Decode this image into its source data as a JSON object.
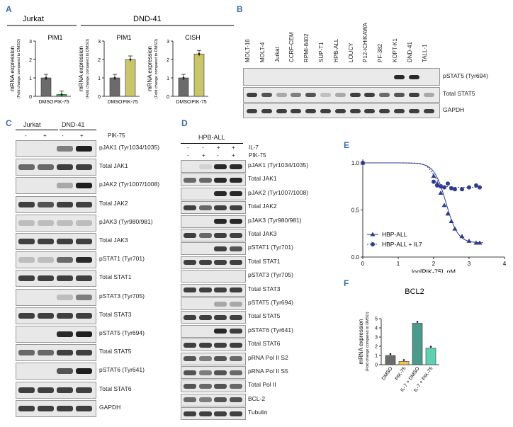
{
  "panels": {
    "A": "A",
    "B": "B",
    "C": "C",
    "D": "D",
    "E": "E",
    "F": "F"
  },
  "panel_a": {
    "group_left": "Jurkat",
    "group_right": "DND-41",
    "ylabel": "mRNA expression",
    "ylabel_sub": "(Fold change compared to DMSO)",
    "conditions": [
      "DMSO",
      "PIK-75"
    ],
    "plots": [
      {
        "title": "PIM1",
        "cell": "Jurkat",
        "values": [
          1.0,
          0.1
        ],
        "yticks": [
          "0",
          "1",
          "2",
          "3"
        ],
        "color_pik": "#2ec24a"
      },
      {
        "title": "PIM1",
        "cell": "DND-41",
        "values": [
          1.0,
          2.0
        ],
        "yticks": [
          "0",
          "1",
          "2",
          "3"
        ],
        "color_pik": "#c9c56a"
      },
      {
        "title": "CISH",
        "cell": "DND-41",
        "values": [
          1.0,
          2.3
        ],
        "yticks": [
          "0",
          "1",
          "2",
          "3"
        ],
        "color_pik": "#c9c56a"
      }
    ]
  },
  "panel_b": {
    "lanes": [
      "MOLT-16",
      "MOLT-4",
      "Jurkat",
      "CCRF-CEM",
      "RPMI-8402",
      "SUP-T1",
      "HPB-ALL",
      "LOUCY",
      "P12-ICHIKAWA",
      "PF-382",
      "KOPT-K1",
      "DND-41",
      "TALL-1"
    ],
    "blots": [
      "pSTAT5 (Tyr694)",
      "Total STAT5",
      "GAPDH"
    ]
  },
  "panel_c": {
    "cells": [
      "Jurkat",
      "DND-41"
    ],
    "treatment": "PIK-75",
    "signs": [
      "-",
      "+",
      "-",
      "+"
    ],
    "blots": [
      "pJAK1 (Tyr1034/1035)",
      "Total JAK1",
      "pJAK2 (Tyr1007/1008)",
      "Total JAK2",
      "pJAK3 (Tyr980/981)",
      "Total JAK3",
      "pSTAT1 (Tyr701)",
      "Total STAT1",
      "pSTAT3 (Tyr705)",
      "Total STAT3",
      "pSTAT5 (Tyr694)",
      "Total STAT5",
      "pSTAT6 (Tyr641)",
      "Total STAT6",
      "GAPDH"
    ]
  },
  "panel_d": {
    "cell": "HPB-ALL",
    "treatments": [
      "IL-7",
      "PIK-75"
    ],
    "il7_signs": [
      "-",
      "-",
      "+",
      "+"
    ],
    "pik_signs": [
      "-",
      "+",
      "-",
      "+"
    ],
    "blots": [
      "pJAK1 (Tyr1034/1035)",
      "Total JAK1",
      "pJAK2 (Tyr1007/1008)",
      "Total JAK2",
      "pJAK3 (Tyr980/981)",
      "Total JAK3",
      "pSTAT1 (Tyr701)",
      "Total STAT1",
      "pSTAT3 (Tyr705)",
      "Total STAT3",
      "pSTAT5 (Tyr694)",
      "Total STAT5",
      "pSTAT6 (Tyr641)",
      "Total STAT6",
      "pRNA Pol II S2",
      "pRNA Pol II S5",
      "Total Pol II",
      "BCL-2",
      "Tubulin"
    ]
  },
  "chart_data": [
    {
      "type": "scatter",
      "panel": "E",
      "xlabel": "log[PIK-75], nM",
      "ylabel": "Relative cell viability",
      "xlim": [
        0,
        4
      ],
      "ylim": [
        0,
        1.0
      ],
      "xticks": [
        "0",
        "1",
        "2",
        "3",
        "4"
      ],
      "yticks": [
        "0.0",
        "0.5",
        "1.0"
      ],
      "legend": "bottom-left",
      "series": [
        {
          "name": "HBP-ALL",
          "marker": "triangle",
          "color": "#2f3b8f",
          "x": [
            0,
            2.0,
            2.1,
            2.2,
            2.3,
            2.4,
            2.5,
            2.6,
            2.8,
            3.0,
            3.2,
            3.3
          ],
          "y": [
            1.0,
            0.86,
            0.78,
            0.68,
            0.55,
            0.46,
            0.38,
            0.3,
            0.22,
            0.17,
            0.15,
            0.15
          ]
        },
        {
          "name": "HBP-ALL + IL7",
          "marker": "circle",
          "color": "#2f3b8f",
          "x": [
            0,
            2.0,
            2.1,
            2.2,
            2.3,
            2.4,
            2.5,
            2.6,
            2.8,
            3.0,
            3.2,
            3.3
          ],
          "y": [
            1.0,
            0.8,
            0.76,
            0.75,
            0.74,
            0.78,
            0.73,
            0.72,
            0.72,
            0.74,
            0.76,
            0.74
          ]
        }
      ]
    },
    {
      "type": "bar",
      "panel": "F",
      "title": "BCL2",
      "ylabel": "mRNA expression",
      "ylabel_sub": "(Fold change compared to DMSO)",
      "categories": [
        "DMSO",
        "PIK-75",
        "IL-7 + DMSO",
        "IL-7 + PIK-75"
      ],
      "values": [
        1.0,
        0.35,
        4.5,
        1.8
      ],
      "colors": [
        "#6b6b6b",
        "#f5c24a",
        "#4b9a8c",
        "#5fd1b3"
      ],
      "ylim": [
        0,
        5
      ],
      "yticks": [
        "0",
        "1",
        "2",
        "3",
        "4",
        "5"
      ]
    }
  ]
}
